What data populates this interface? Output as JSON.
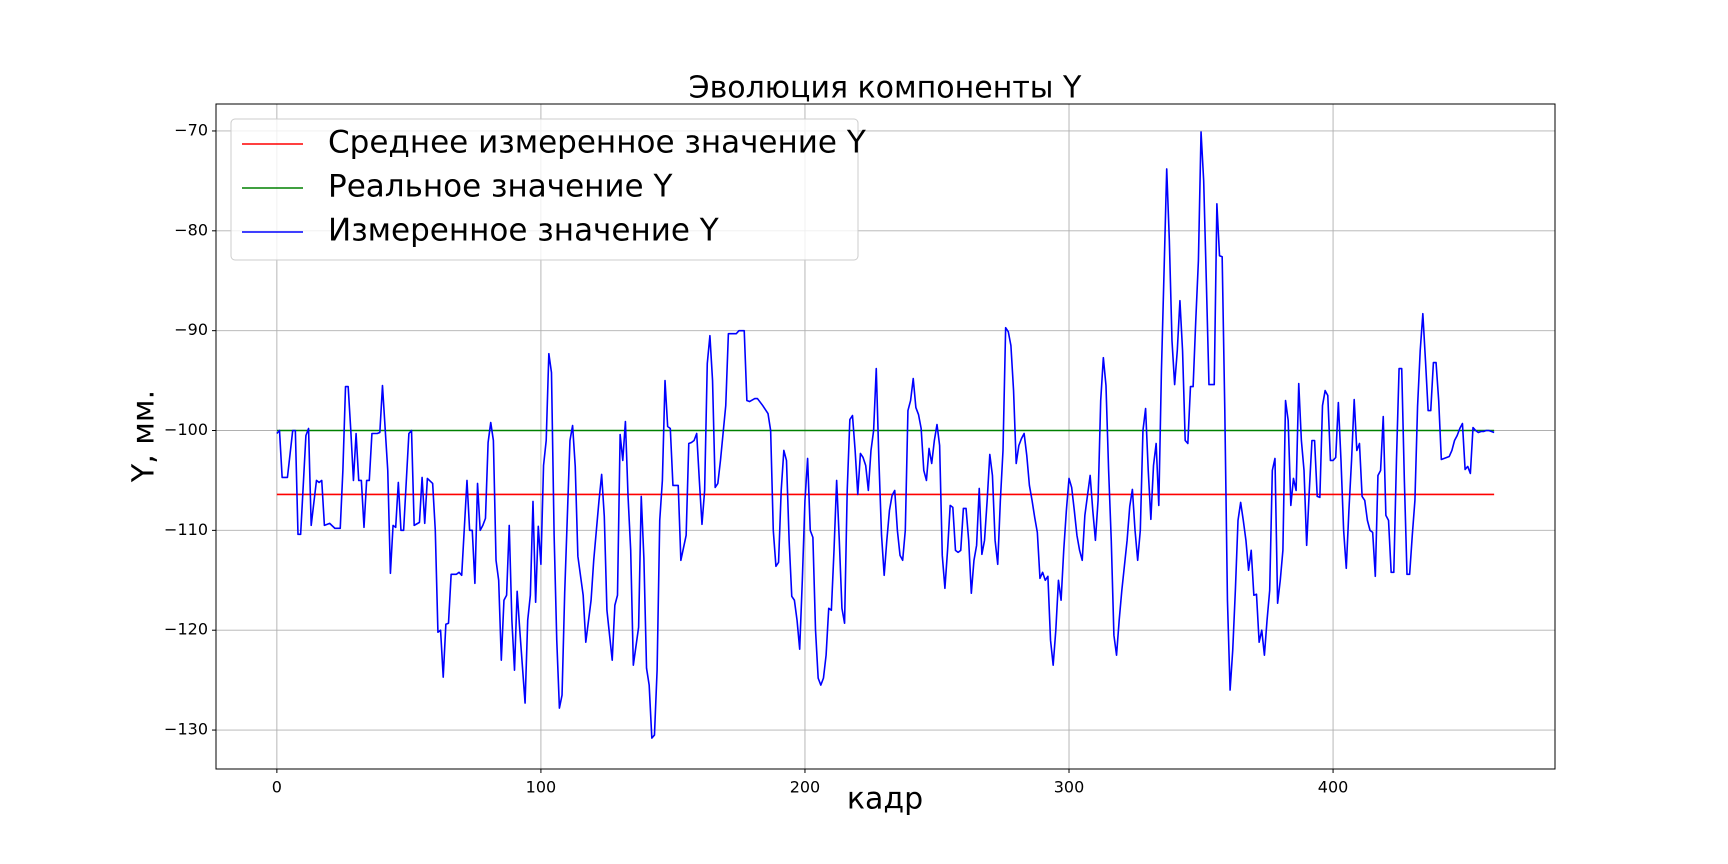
{
  "chart_data": {
    "type": "line",
    "title": "Эволюция компоненты Y",
    "xlabel": "кадр",
    "ylabel": "Y, мм.",
    "xlim": [
      -23.05,
      484.05
    ],
    "ylim": [
      -133.9,
      -67.3
    ],
    "xticks": [
      0,
      100,
      200,
      300,
      400
    ],
    "yticks": [
      {
        "value": -130,
        "label": "−130"
      },
      {
        "value": -120,
        "label": "−120"
      },
      {
        "value": -110,
        "label": "−110"
      },
      {
        "value": -100,
        "label": "−100"
      },
      {
        "value": -90,
        "label": "−90"
      },
      {
        "value": -80,
        "label": "−80"
      },
      {
        "value": -70,
        "label": "−70"
      }
    ],
    "grid": true,
    "legend": "upper left",
    "series": [
      {
        "name": "Среднее измеренное значение Y",
        "color": "#ff0000",
        "x": [
          0,
          461
        ],
        "values": [
          -106.4,
          -106.4
        ]
      },
      {
        "name": "Реальное значение Y",
        "color": "#008000",
        "x": [
          0,
          461
        ],
        "values": [
          -100,
          -100
        ]
      },
      {
        "name": "Измеренное значение Y",
        "color": "#0000ff",
        "x": [
          0,
          1,
          2,
          4,
          6,
          7,
          8,
          9,
          11,
          12,
          13,
          15,
          16,
          17,
          18,
          20,
          22,
          24,
          25,
          26,
          27,
          28,
          29,
          30,
          31,
          32,
          33,
          34,
          35,
          36,
          38,
          39,
          40,
          42,
          43,
          44,
          45,
          46,
          47,
          48,
          50,
          51,
          52,
          54,
          55,
          56,
          57,
          59,
          60,
          61,
          62,
          63,
          64,
          65,
          66,
          68,
          69,
          70,
          72,
          73,
          74,
          75,
          76,
          77,
          78,
          79,
          80,
          81,
          82,
          83,
          84,
          85,
          86,
          87,
          88,
          89,
          90,
          91,
          92,
          94,
          95,
          96,
          97,
          98,
          99,
          100,
          101,
          102,
          103,
          104,
          105,
          106,
          107,
          108,
          109,
          111,
          112,
          113,
          114,
          116,
          117,
          119,
          120,
          122,
          123,
          124,
          125,
          127,
          128,
          129,
          130,
          131,
          132,
          133,
          134,
          135,
          137,
          138,
          139,
          140,
          141,
          142,
          143,
          144,
          145,
          146,
          147,
          148,
          149,
          150,
          152,
          153,
          155,
          156,
          157,
          158,
          159,
          160,
          161,
          162,
          163,
          164,
          165,
          166,
          167,
          168,
          170,
          171,
          174,
          175,
          177,
          178,
          179,
          181,
          182,
          184,
          186,
          187,
          188,
          189,
          190,
          191,
          192,
          193,
          194,
          195,
          196,
          197,
          198,
          199,
          200,
          201,
          202,
          203,
          204,
          205,
          206,
          207,
          208,
          209,
          210,
          211,
          212,
          213,
          214,
          215,
          216,
          217,
          218,
          219,
          220,
          221,
          222,
          223,
          224,
          225,
          226,
          227,
          228,
          229,
          230,
          231,
          232,
          233,
          234,
          235,
          236,
          237,
          238,
          239,
          240,
          241,
          242,
          243,
          244,
          245,
          246,
          247,
          248,
          249,
          250,
          251,
          252,
          253,
          254,
          255,
          256,
          257,
          258,
          259,
          260,
          261,
          262,
          263,
          264,
          265,
          266,
          267,
          268,
          269,
          270,
          271,
          272,
          273,
          274,
          275,
          276,
          277,
          278,
          279,
          280,
          281,
          282,
          283,
          284,
          285,
          286,
          287,
          288,
          289,
          290,
          291,
          292,
          293,
          294,
          295,
          296,
          297,
          298,
          299,
          300,
          301,
          302,
          303,
          304,
          305,
          306,
          307,
          308,
          309,
          310,
          311,
          312,
          313,
          314,
          315,
          316,
          317,
          318,
          319,
          320,
          321,
          322,
          323,
          324,
          325,
          326,
          327,
          328,
          329,
          330,
          331,
          332,
          333,
          334,
          335,
          336,
          337,
          338,
          339,
          340,
          341,
          342,
          343,
          344,
          345,
          346,
          347,
          348,
          349,
          350,
          351,
          352,
          353,
          355,
          356,
          357,
          358,
          359,
          360,
          361,
          362,
          363,
          364,
          365,
          366,
          367,
          368,
          369,
          370,
          371,
          372,
          373,
          374,
          375,
          376,
          377,
          378,
          379,
          380,
          381,
          382,
          383,
          384,
          385,
          386,
          387,
          388,
          389,
          390,
          391,
          392,
          393,
          394,
          395,
          396,
          397,
          398,
          399,
          400,
          401,
          402,
          403,
          404,
          405,
          406,
          407,
          408,
          409,
          410,
          411,
          412,
          413,
          414,
          415,
          416,
          417,
          418,
          419,
          420,
          421,
          422,
          423,
          424,
          425,
          426,
          427,
          428,
          429,
          430,
          431,
          432,
          433,
          434,
          435,
          436,
          437,
          438,
          439,
          440,
          441,
          442,
          443,
          444,
          445,
          446,
          447,
          448,
          449,
          450,
          451,
          452,
          453,
          454,
          455,
          456,
          457,
          458,
          459,
          460,
          461
        ],
        "values": [
          -100.3,
          -100,
          -104.7,
          -104.7,
          -100,
          -100,
          -110.4,
          -110.4,
          -100.5,
          -99.8,
          -109.5,
          -105,
          -105.2,
          -105,
          -109.5,
          -109.3,
          -109.8,
          -109.8,
          -104,
          -95.6,
          -95.6,
          -100,
          -105,
          -100.3,
          -105,
          -105,
          -109.7,
          -105,
          -105,
          -100.3,
          -100.3,
          -100.2,
          -95.5,
          -104,
          -114.3,
          -109.5,
          -109.7,
          -105.2,
          -110,
          -110,
          -100.3,
          -100,
          -109.5,
          -109.2,
          -104.7,
          -109.3,
          -104.8,
          -105.3,
          -110,
          -120.2,
          -120,
          -124.7,
          -119.4,
          -119.3,
          -114.4,
          -114.4,
          -114.2,
          -114.5,
          -105,
          -110,
          -110,
          -115.3,
          -105.3,
          -110,
          -109.5,
          -108.8,
          -101.2,
          -99.2,
          -101,
          -113,
          -115,
          -123,
          -117,
          -116.5,
          -109.5,
          -119,
          -124,
          -116.1,
          -120,
          -127.3,
          -119,
          -116.5,
          -107.1,
          -117.2,
          -109.6,
          -113.4,
          -103.5,
          -101,
          -92.3,
          -94.2,
          -110.5,
          -121,
          -127.8,
          -126.5,
          -116.3,
          -101,
          -99.5,
          -103.6,
          -112.6,
          -116.5,
          -121.2,
          -117,
          -113,
          -107,
          -104.4,
          -108.6,
          -118,
          -123,
          -117.5,
          -116.5,
          -100.4,
          -103,
          -99.1,
          -106.6,
          -112,
          -123.5,
          -119.7,
          -106.6,
          -112.8,
          -123.8,
          -125.5,
          -130.8,
          -130.5,
          -124,
          -109,
          -105,
          -95,
          -99.6,
          -99.8,
          -105.5,
          -105.5,
          -113,
          -110.5,
          -101.3,
          -101.2,
          -101,
          -100.3,
          -105,
          -109.4,
          -106,
          -93.3,
          -90.5,
          -95,
          -105.7,
          -105.3,
          -103,
          -97.5,
          -90.3,
          -90.3,
          -90,
          -90,
          -97,
          -97.1,
          -96.8,
          -96.8,
          -97.5,
          -98.3,
          -100,
          -110,
          -113.6,
          -113.2,
          -106,
          -102,
          -103,
          -111,
          -116.6,
          -117,
          -119,
          -121.9,
          -115,
          -107,
          -102.8,
          -110,
          -110.7,
          -120,
          -124.8,
          -125.5,
          -124.8,
          -122.5,
          -117.8,
          -118,
          -112,
          -105,
          -111,
          -117.8,
          -119.3,
          -106,
          -98.9,
          -98.5,
          -102,
          -106.4,
          -102.3,
          -102.7,
          -103.5,
          -106,
          -102,
          -100,
          -93.8,
          -103,
          -110.5,
          -114.5,
          -111,
          -108,
          -106.5,
          -106,
          -110,
          -112.5,
          -113,
          -110,
          -98,
          -97,
          -94.8,
          -97.7,
          -98.4,
          -99.8,
          -104,
          -105,
          -101.8,
          -103.3,
          -101,
          -99.4,
          -101.5,
          -112.5,
          -115.8,
          -112,
          -107.5,
          -107.7,
          -112,
          -112.2,
          -112,
          -107.8,
          -107.8,
          -111,
          -116.3,
          -113,
          -111.5,
          -105.8,
          -112.4,
          -111,
          -107,
          -102.4,
          -104.5,
          -111,
          -113.4,
          -107,
          -102,
          -89.7,
          -90.1,
          -91.5,
          -96,
          -103.3,
          -101.5,
          -100.8,
          -100.3,
          -102.5,
          -105.5,
          -107,
          -108.7,
          -110.2,
          -114.8,
          -114.2,
          -115,
          -114.6,
          -121,
          -123.5,
          -120,
          -115,
          -117,
          -112,
          -108,
          -104.8,
          -105.7,
          -108,
          -110.5,
          -112,
          -113,
          -108.5,
          -106.5,
          -104.5,
          -108,
          -111,
          -107,
          -97,
          -92.7,
          -95.5,
          -104,
          -111,
          -120.5,
          -122.5,
          -119,
          -116,
          -113.5,
          -111,
          -107.6,
          -105.9,
          -110,
          -113,
          -110,
          -100,
          -97.8,
          -104,
          -108.9,
          -103.5,
          -101.3,
          -107.5,
          -94,
          -84,
          -73.8,
          -81,
          -91,
          -95.4,
          -92,
          -87,
          -92,
          -101,
          -101.3,
          -95.6,
          -95.6,
          -89,
          -83,
          -70.1,
          -75,
          -85,
          -95.4,
          -95.4,
          -77.3,
          -82.5,
          -82.6,
          -98,
          -117,
          -126,
          -122,
          -116,
          -109,
          -107.2,
          -109,
          -111,
          -114,
          -112,
          -116.5,
          -116.4,
          -121.2,
          -120,
          -122.5,
          -119,
          -116,
          -104,
          -102.8,
          -117.3,
          -115,
          -112,
          -97,
          -99,
          -107.5,
          -104.8,
          -106,
          -95.3,
          -101,
          -104,
          -111.5,
          -106,
          -101,
          -101,
          -106.6,
          -106.7,
          -97.5,
          -96,
          -96.5,
          -103,
          -103,
          -102.7,
          -97.2,
          -103,
          -110,
          -113.8,
          -108,
          -103,
          -96.9,
          -102,
          -101.3,
          -106.6,
          -107,
          -109,
          -110,
          -110.2,
          -114.6,
          -104.5,
          -104,
          -98.6,
          -108.5,
          -109,
          -114.2,
          -114.2,
          -103,
          -93.8,
          -93.8,
          -105,
          -114.4,
          -114.4,
          -110.5,
          -107,
          -97.6,
          -92,
          -88.3,
          -93,
          -98,
          -98,
          -93.2,
          -93.2,
          -97,
          -102.9,
          -102.8,
          -102.7,
          -102.6,
          -102,
          -101,
          -100.5,
          -99.8,
          -99.3,
          -103.9,
          -103.6,
          -104.3,
          -99.7,
          -100,
          -100.2,
          -100.1,
          -100.1,
          -100,
          -100,
          -100.1,
          -100.2
        ]
      }
    ]
  }
}
